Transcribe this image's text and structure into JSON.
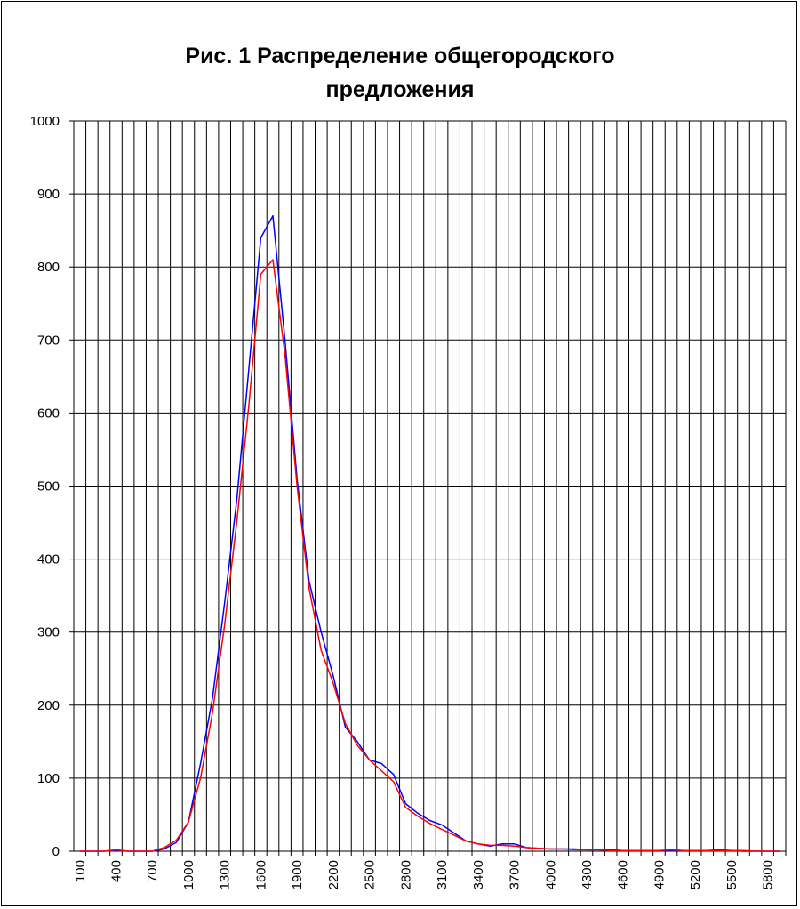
{
  "chart_data": {
    "type": "line",
    "title_lines": [
      "Рис. 1 Распределение общегородского",
      "предложения"
    ],
    "xlabel": "",
    "ylabel": "",
    "ylim": [
      0,
      1000
    ],
    "y_ticks": [
      "0",
      "100",
      "200",
      "300",
      "400",
      "500",
      "600",
      "700",
      "800",
      "900",
      "1000"
    ],
    "x_tick_labels": [
      "100",
      "400",
      "700",
      "1000",
      "1300",
      "1600",
      "1900",
      "2200",
      "2500",
      "2800",
      "3100",
      "3400",
      "3700",
      "4000",
      "4300",
      "4600",
      "4900",
      "5200",
      "5500",
      "5800"
    ],
    "x": [
      100,
      200,
      300,
      400,
      500,
      600,
      700,
      800,
      900,
      1000,
      1100,
      1200,
      1300,
      1400,
      1500,
      1600,
      1700,
      1800,
      1900,
      2000,
      2100,
      2200,
      2300,
      2400,
      2500,
      2600,
      2700,
      2800,
      2900,
      3000,
      3100,
      3200,
      3300,
      3400,
      3500,
      3600,
      3700,
      3800,
      3900,
      4000,
      4100,
      4200,
      4300,
      4400,
      4500,
      4600,
      4700,
      4800,
      4900,
      5000,
      5100,
      5200,
      5300,
      5400,
      5500,
      5600,
      5700,
      5800,
      5900
    ],
    "grid": true,
    "legend": "none",
    "series": [
      {
        "color": "#0000ff",
        "values": [
          0,
          0,
          0,
          1,
          0,
          0,
          0,
          3,
          12,
          40,
          120,
          210,
          340,
          480,
          660,
          840,
          870,
          700,
          510,
          370,
          300,
          240,
          170,
          150,
          125,
          120,
          105,
          65,
          52,
          42,
          36,
          25,
          14,
          10,
          7,
          10,
          10,
          5,
          4,
          3,
          3,
          3,
          2,
          2,
          2,
          1,
          1,
          1,
          1,
          1,
          1,
          1,
          1,
          2,
          1,
          0,
          0,
          0,
          0
        ]
      },
      {
        "color": "#ff0000",
        "values": [
          0,
          0,
          0,
          2,
          0,
          0,
          0,
          5,
          15,
          40,
          100,
          190,
          310,
          450,
          610,
          790,
          810,
          680,
          500,
          360,
          275,
          230,
          175,
          145,
          125,
          110,
          95,
          60,
          48,
          38,
          30,
          22,
          14,
          10,
          8,
          8,
          7,
          5,
          4,
          3,
          3,
          2,
          2,
          2,
          1,
          1,
          1,
          1,
          1,
          2,
          1,
          1,
          1,
          1,
          1,
          1,
          0,
          0,
          0
        ]
      }
    ]
  }
}
